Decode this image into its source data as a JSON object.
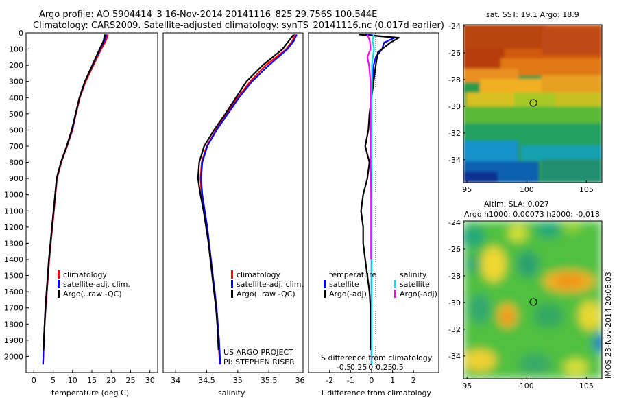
{
  "title": {
    "line1": "Argo profile: AO 5904414_3 16-Nov-2014 20141116_825 29.756S 100.544E",
    "line2": "Climatology: CARS2009. Satellite-adjusted climatology: synTS_20141116.nc (0.017d earlier)"
  },
  "colors": {
    "red": "#ff0000",
    "blue": "#0000ff",
    "black": "#000000",
    "cyan": "#00e5ee",
    "magenta": "#ff00ff"
  },
  "chart_data": [
    {
      "type": "line",
      "xlabel": "temperature (deg C)",
      "xlim": [
        -2,
        32
      ],
      "xticks": [
        0,
        5,
        10,
        15,
        20,
        25,
        30
      ],
      "ylim": [
        2100,
        0
      ],
      "yticks": [
        0,
        100,
        200,
        300,
        400,
        500,
        600,
        700,
        800,
        900,
        1000,
        1100,
        1200,
        1300,
        1400,
        1500,
        1600,
        1700,
        1800,
        1900,
        2000
      ],
      "legend": [
        "climatology",
        "satellite-adj. clim.",
        "Argo(..raw -QC)"
      ],
      "series": [
        {
          "name": "climatology",
          "color": "red",
          "x": [
            19.2,
            18.6,
            17.4,
            15.4,
            13.4,
            11.9,
            10.9,
            10.0,
            8.6,
            7.1,
            6.0,
            5.6,
            5.2,
            4.8,
            4.4,
            4.0,
            3.7,
            3.4,
            3.1,
            2.8,
            2.6,
            2.4
          ],
          "y": [
            10,
            50,
            100,
            200,
            300,
            400,
            500,
            600,
            700,
            800,
            900,
            1000,
            1100,
            1200,
            1300,
            1400,
            1500,
            1600,
            1700,
            1800,
            1900,
            2050
          ]
        },
        {
          "name": "satellite-adj. clim.",
          "color": "blue",
          "x": [
            18.8,
            18.2,
            17.1,
            15.2,
            13.2,
            11.8,
            10.8,
            9.9,
            8.5,
            7.0,
            5.9,
            5.5,
            5.1,
            4.7,
            4.3,
            3.9,
            3.6,
            3.3,
            3.0,
            2.8,
            2.6,
            2.4
          ],
          "y": [
            10,
            50,
            100,
            200,
            300,
            400,
            500,
            600,
            700,
            800,
            900,
            1000,
            1100,
            1200,
            1300,
            1400,
            1500,
            1600,
            1700,
            1800,
            1900,
            2050
          ]
        },
        {
          "name": "Argo(..raw -QC)",
          "color": "black",
          "x": [
            18.4,
            18.0,
            17.0,
            15.1,
            13.2,
            11.8,
            10.8,
            9.8,
            8.5,
            7.0,
            5.9,
            5.5,
            5.1,
            4.7,
            4.3,
            3.9,
            3.6,
            3.3,
            3.0,
            2.8,
            2.5
          ],
          "y": [
            10,
            50,
            100,
            200,
            300,
            400,
            500,
            600,
            700,
            800,
            900,
            1000,
            1100,
            1200,
            1300,
            1400,
            1500,
            1600,
            1700,
            1800,
            1960
          ]
        }
      ]
    },
    {
      "type": "line",
      "xlabel": "salinity",
      "xlim": [
        33.8,
        36.05
      ],
      "xticks": [
        34,
        34.5,
        35,
        35.5,
        36
      ],
      "ylim": [
        2100,
        0
      ],
      "legend": [
        "climatology",
        "satellite-adj. clim.",
        "Argo(..raw -QC)"
      ],
      "annotations": [
        "US ARGO PROJECT",
        "PI: STEPHEN RISER"
      ],
      "series": [
        {
          "name": "climatology",
          "color": "red",
          "x": [
            35.92,
            35.88,
            35.78,
            35.45,
            35.2,
            35.0,
            34.82,
            34.65,
            34.5,
            34.42,
            34.4,
            34.42,
            34.46,
            34.5,
            34.53,
            34.56,
            34.59,
            34.62,
            34.65,
            34.67,
            34.69,
            34.71
          ],
          "y": [
            10,
            50,
            100,
            200,
            300,
            400,
            500,
            600,
            700,
            800,
            900,
            1000,
            1100,
            1200,
            1300,
            1400,
            1500,
            1600,
            1700,
            1800,
            1900,
            2050
          ]
        },
        {
          "name": "satellite-adj. clim.",
          "color": "blue",
          "x": [
            35.95,
            35.9,
            35.8,
            35.5,
            35.23,
            35.02,
            34.84,
            34.66,
            34.51,
            34.43,
            34.41,
            34.43,
            34.47,
            34.51,
            34.54,
            34.57,
            34.6,
            34.63,
            34.66,
            34.68,
            34.7,
            34.72
          ],
          "y": [
            10,
            50,
            100,
            200,
            300,
            400,
            500,
            600,
            700,
            800,
            900,
            1000,
            1100,
            1200,
            1300,
            1400,
            1500,
            1600,
            1700,
            1800,
            1900,
            2050
          ]
        },
        {
          "name": "Argo(..raw -QC)",
          "color": "black",
          "x": [
            35.9,
            35.82,
            35.72,
            35.4,
            35.14,
            34.97,
            34.8,
            34.62,
            34.46,
            34.38,
            34.36,
            34.4,
            34.45,
            34.49,
            34.53,
            34.56,
            34.59,
            34.62,
            34.65,
            34.67,
            34.69
          ],
          "y": [
            10,
            50,
            100,
            200,
            300,
            400,
            500,
            600,
            700,
            800,
            900,
            1000,
            1100,
            1200,
            1300,
            1400,
            1500,
            1600,
            1700,
            1800,
            1960
          ]
        }
      ]
    },
    {
      "type": "line",
      "xlabel": "T difference from climatology",
      "xlabel_top": "S difference from climatology",
      "xlim": [
        -3,
        3.2
      ],
      "xticks": [
        -2,
        -1,
        0,
        1,
        2
      ],
      "xticks_top": [
        -0.5,
        -0.25,
        0,
        0.25,
        0.5
      ],
      "ylim": [
        2100,
        0
      ],
      "legend_titles": [
        "temperature",
        "salinity"
      ],
      "legend": [
        "satellite",
        "Argo(-adj)",
        "satellite",
        "Argo(-adj)"
      ],
      "series": [
        {
          "name": "temperature satellite",
          "color": "blue",
          "x": [
            -0.3,
            1.1,
            0.6,
            0.5,
            0.2,
            0.1,
            0.05,
            0,
            0,
            0,
            0,
            0,
            0,
            0,
            0,
            0,
            0,
            0,
            0,
            0,
            0
          ],
          "y": [
            10,
            30,
            60,
            100,
            150,
            200,
            300,
            400,
            500,
            600,
            700,
            800,
            900,
            1000,
            1200,
            1400,
            1600,
            1800,
            1900,
            2000,
            2050
          ]
        },
        {
          "name": "temperature Argo(-adj)",
          "color": "black",
          "x": [
            -0.6,
            1.3,
            0.9,
            0.3,
            0.2,
            0.1,
            0.0,
            -0.1,
            -0.15,
            -0.3,
            -0.1,
            -0.2,
            -0.4,
            -0.5,
            -0.4,
            -0.4,
            -0.3,
            -0.2,
            -0.1,
            -0.05,
            -0.05,
            -0.05,
            -0.05
          ],
          "y": [
            10,
            30,
            60,
            120,
            200,
            300,
            400,
            500,
            600,
            700,
            800,
            900,
            1000,
            1100,
            1200,
            1300,
            1400,
            1500,
            1600,
            1700,
            1800,
            1900,
            1960
          ]
        },
        {
          "name": "salinity satellite",
          "color": "cyan",
          "x": [
            0.1,
            0.05,
            0.12,
            0.06,
            0.02,
            0.02,
            0.01,
            0.01,
            0.01,
            0.01,
            0.01,
            0.01,
            0.01,
            0.01,
            0.01,
            0.01,
            0.01,
            0.01,
            0.01,
            0.01,
            0.01
          ],
          "y": [
            10,
            50,
            100,
            150,
            200,
            300,
            400,
            500,
            600,
            700,
            800,
            900,
            1000,
            1200,
            1400,
            1600,
            1800,
            1900,
            2000,
            2040,
            2050
          ]
        },
        {
          "name": "salinity Argo(-adj)",
          "color": "magenta",
          "x": [
            -0.2,
            -0.08,
            -0.05,
            -0.2,
            -0.12,
            -0.05,
            -0.05,
            -0.05,
            -0.05,
            -0.03,
            -0.02,
            -0.02,
            -0.02,
            -0.02,
            -0.02
          ],
          "y": [
            10,
            50,
            100,
            150,
            200,
            300,
            500,
            700,
            800,
            900,
            1000,
            1100,
            1200,
            1300,
            1400
          ]
        }
      ]
    },
    {
      "type": "heatmap",
      "title": "sat. SST: 19.1  Argo: 18.9",
      "xticks": [
        95,
        100,
        105
      ],
      "yticks": [
        -24,
        -26,
        -28,
        -30,
        -32,
        -34
      ],
      "marker": {
        "lon": 100.544,
        "lat": -29.756
      }
    },
    {
      "type": "heatmap",
      "title_line1": "Altim. SLA: 0.027",
      "title_line2": "Argo h1000: 0.00073 h2000: -0.018",
      "xticks": [
        95,
        100,
        105
      ],
      "yticks": [
        -24,
        -26,
        -28,
        -30,
        -32,
        -34
      ],
      "marker": {
        "lon": 100.544,
        "lat": -29.756
      }
    }
  ],
  "side_text": "IMOS 23-Nov-2014 20:08:03"
}
